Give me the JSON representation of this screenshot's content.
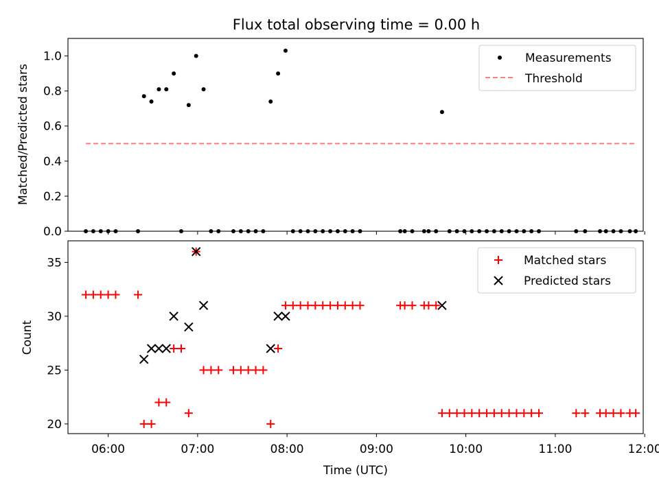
{
  "chart_data": {
    "title": "Flux total observing time = 0.00 h",
    "xlabel": "Time (UTC)",
    "x_tick_labels": [
      "06:00",
      "07:00",
      "08:00",
      "09:00",
      "10:00",
      "11:00",
      "12:00"
    ],
    "xlim": [
      "05:33",
      "11:59"
    ],
    "panels": [
      {
        "type": "scatter",
        "ylabel": "Matched/Predicted stars",
        "ylim": [
          0,
          1.1
        ],
        "y_ticks": [
          "0.0",
          "0.2",
          "0.4",
          "0.6",
          "0.8",
          "1.0"
        ],
        "legend_position": "upper right",
        "series": [
          {
            "name": "Measurements",
            "marker": "dot",
            "color": "#000000",
            "points": [
              [
                "05:45",
                0
              ],
              [
                "05:50",
                0
              ],
              [
                "05:55",
                0
              ],
              [
                "06:00",
                0
              ],
              [
                "06:05",
                0
              ],
              [
                "06:20",
                0
              ],
              [
                "06:24",
                0.77
              ],
              [
                "06:29",
                0.74
              ],
              [
                "06:34",
                0.81
              ],
              [
                "06:39",
                0.81
              ],
              [
                "06:44",
                0.9
              ],
              [
                "06:49",
                0
              ],
              [
                "06:54",
                0.72
              ],
              [
                "06:59",
                1.0
              ],
              [
                "07:04",
                0.81
              ],
              [
                "07:09",
                0
              ],
              [
                "07:14",
                0
              ],
              [
                "07:24",
                0
              ],
              [
                "07:29",
                0
              ],
              [
                "07:34",
                0
              ],
              [
                "07:39",
                0
              ],
              [
                "07:44",
                0
              ],
              [
                "07:49",
                0.74
              ],
              [
                "07:54",
                0.9
              ],
              [
                "07:59",
                1.03
              ],
              [
                "08:04",
                0
              ],
              [
                "08:09",
                0
              ],
              [
                "08:14",
                0
              ],
              [
                "08:19",
                0
              ],
              [
                "08:24",
                0
              ],
              [
                "08:29",
                0
              ],
              [
                "08:34",
                0
              ],
              [
                "08:39",
                0
              ],
              [
                "08:44",
                0
              ],
              [
                "08:49",
                0
              ],
              [
                "09:16",
                0
              ],
              [
                "09:19",
                0
              ],
              [
                "09:24",
                0
              ],
              [
                "09:32",
                0
              ],
              [
                "09:35",
                0
              ],
              [
                "09:40",
                0
              ],
              [
                "09:44",
                0.68
              ],
              [
                "09:49",
                0
              ],
              [
                "09:54",
                0
              ],
              [
                "09:59",
                0
              ],
              [
                "10:04",
                0
              ],
              [
                "10:09",
                0
              ],
              [
                "10:14",
                0
              ],
              [
                "10:19",
                0
              ],
              [
                "10:24",
                0
              ],
              [
                "10:29",
                0
              ],
              [
                "10:34",
                0
              ],
              [
                "10:39",
                0
              ],
              [
                "10:44",
                0
              ],
              [
                "10:49",
                0
              ],
              [
                "11:14",
                0
              ],
              [
                "11:20",
                0
              ],
              [
                "11:30",
                0
              ],
              [
                "11:34",
                0
              ],
              [
                "11:39",
                0
              ],
              [
                "11:44",
                0
              ],
              [
                "11:50",
                0
              ],
              [
                "11:54",
                0
              ]
            ]
          },
          {
            "name": "Threshold",
            "marker": "dashed-line",
            "color": "#ff7f7f",
            "points": [
              [
                "05:45",
                0.5
              ],
              [
                "11:54",
                0.5
              ]
            ]
          }
        ]
      },
      {
        "type": "scatter",
        "ylabel": "Count",
        "ylim": [
          19.1,
          37.0
        ],
        "y_ticks": [
          "20",
          "25",
          "30",
          "35"
        ],
        "legend_position": "upper right",
        "series": [
          {
            "name": "Matched stars",
            "marker": "plus",
            "color": "#ff0000",
            "points": [
              [
                "05:45",
                32
              ],
              [
                "05:50",
                32
              ],
              [
                "05:55",
                32
              ],
              [
                "06:00",
                32
              ],
              [
                "06:05",
                32
              ],
              [
                "06:20",
                32
              ],
              [
                "06:24",
                20
              ],
              [
                "06:29",
                20
              ],
              [
                "06:34",
                22
              ],
              [
                "06:39",
                22
              ],
              [
                "06:44",
                27
              ],
              [
                "06:49",
                27
              ],
              [
                "06:54",
                21
              ],
              [
                "06:59",
                36
              ],
              [
                "07:04",
                25
              ],
              [
                "07:09",
                25
              ],
              [
                "07:14",
                25
              ],
              [
                "07:24",
                25
              ],
              [
                "07:29",
                25
              ],
              [
                "07:34",
                25
              ],
              [
                "07:39",
                25
              ],
              [
                "07:44",
                25
              ],
              [
                "07:49",
                20
              ],
              [
                "07:54",
                27
              ],
              [
                "07:59",
                31
              ],
              [
                "08:04",
                31
              ],
              [
                "08:09",
                31
              ],
              [
                "08:14",
                31
              ],
              [
                "08:19",
                31
              ],
              [
                "08:24",
                31
              ],
              [
                "08:29",
                31
              ],
              [
                "08:34",
                31
              ],
              [
                "08:39",
                31
              ],
              [
                "08:44",
                31
              ],
              [
                "08:49",
                31
              ],
              [
                "09:16",
                31
              ],
              [
                "09:19",
                31
              ],
              [
                "09:24",
                31
              ],
              [
                "09:32",
                31
              ],
              [
                "09:35",
                31
              ],
              [
                "09:40",
                31
              ],
              [
                "09:44",
                21
              ],
              [
                "09:49",
                21
              ],
              [
                "09:54",
                21
              ],
              [
                "09:59",
                21
              ],
              [
                "10:04",
                21
              ],
              [
                "10:09",
                21
              ],
              [
                "10:14",
                21
              ],
              [
                "10:19",
                21
              ],
              [
                "10:24",
                21
              ],
              [
                "10:29",
                21
              ],
              [
                "10:34",
                21
              ],
              [
                "10:39",
                21
              ],
              [
                "10:44",
                21
              ],
              [
                "10:49",
                21
              ],
              [
                "11:14",
                21
              ],
              [
                "11:20",
                21
              ],
              [
                "11:30",
                21
              ],
              [
                "11:34",
                21
              ],
              [
                "11:39",
                21
              ],
              [
                "11:44",
                21
              ],
              [
                "11:50",
                21
              ],
              [
                "11:54",
                21
              ]
            ]
          },
          {
            "name": "Predicted stars",
            "marker": "x",
            "color": "#000000",
            "points": [
              [
                "06:24",
                26
              ],
              [
                "06:29",
                27
              ],
              [
                "06:34",
                27
              ],
              [
                "06:39",
                27
              ],
              [
                "06:44",
                30
              ],
              [
                "06:54",
                29
              ],
              [
                "06:59",
                36
              ],
              [
                "07:04",
                31
              ],
              [
                "07:49",
                27
              ],
              [
                "07:54",
                30
              ],
              [
                "07:59",
                30
              ],
              [
                "09:44",
                31
              ]
            ]
          }
        ]
      }
    ]
  }
}
